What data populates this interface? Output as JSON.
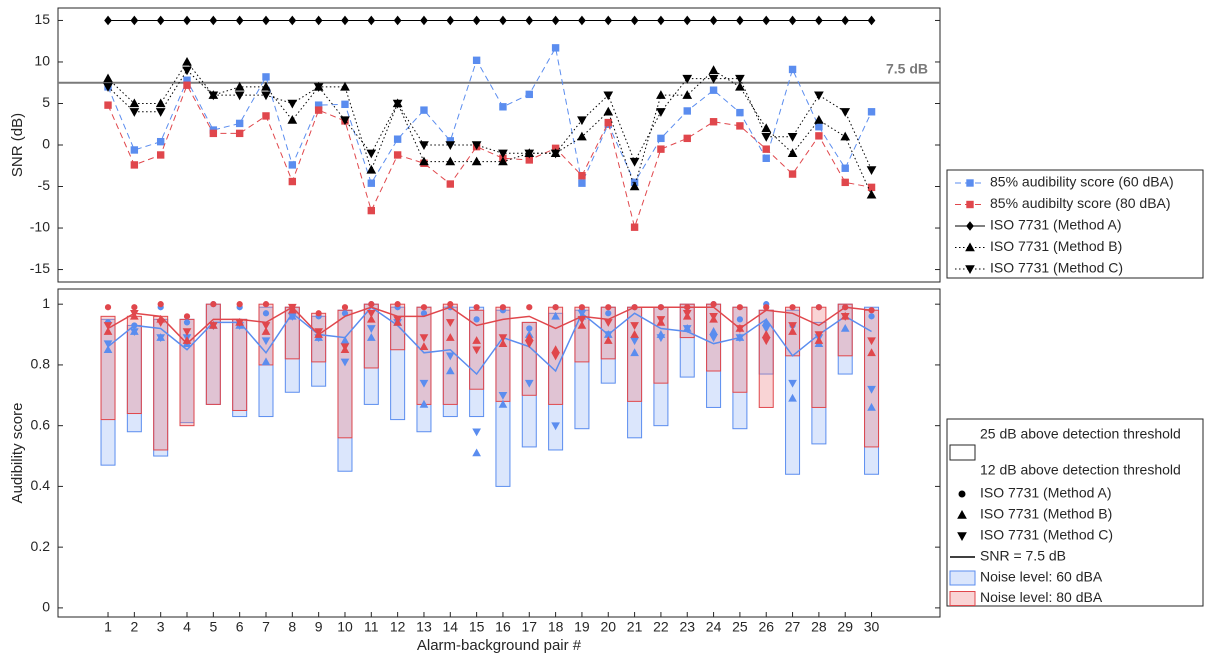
{
  "chart_data": [
    {
      "type": "line",
      "ylabel": "SNR (dB)",
      "x": [
        1,
        2,
        3,
        4,
        5,
        6,
        7,
        8,
        9,
        10,
        11,
        12,
        13,
        14,
        15,
        16,
        17,
        18,
        19,
        20,
        21,
        22,
        23,
        24,
        25,
        26,
        27,
        28,
        29,
        30
      ],
      "xlim": [
        -0.9,
        32.6
      ],
      "ylim": [
        -16.5,
        16.5
      ],
      "yticks": [
        -15,
        -10,
        -5,
        0,
        5,
        10,
        15
      ],
      "reference_line": {
        "value": 7.5,
        "label": "7.5 dB",
        "color": "#7a7a7a"
      },
      "series": [
        {
          "name": "85% audibility score (60 dBA)",
          "color": "#5b8def",
          "marker": "square",
          "dash": "dashed",
          "values": [
            7,
            -0.6,
            0.4,
            7.8,
            1.8,
            2.6,
            8.2,
            -2.4,
            4.8,
            4.9,
            -4.6,
            0.7,
            4.2,
            0.5,
            10.2,
            4.6,
            6.1,
            11.7,
            -4.6,
            2.5,
            -4.5,
            0.8,
            4.1,
            6.6,
            3.9,
            -1.6,
            9.1,
            2.2,
            -2.8,
            4
          ]
        },
        {
          "name": "85% audibilty score (80 dBA)",
          "color": "#e0474c",
          "marker": "square",
          "dash": "dashed",
          "values": [
            4.8,
            -2.4,
            -1.2,
            7.2,
            1.4,
            1.4,
            3.5,
            -4.4,
            4.2,
            2.9,
            -7.9,
            -1.2,
            -2.2,
            -4.7,
            -0.2,
            -1.6,
            -1.8,
            -0.4,
            -3.7,
            2.7,
            -9.9,
            -0.5,
            0.8,
            2.8,
            2.3,
            -0.5,
            -3.5,
            1.1,
            -4.5,
            -5.1
          ]
        },
        {
          "name": "ISO 7731 (Method A)",
          "color": "#000000",
          "marker": "diamond",
          "dash": "solid",
          "values": [
            15,
            15,
            15,
            15,
            15,
            15,
            15,
            15,
            15,
            15,
            15,
            15,
            15,
            15,
            15,
            15,
            15,
            15,
            15,
            15,
            15,
            15,
            15,
            15,
            15,
            15,
            15,
            15,
            15,
            15
          ]
        },
        {
          "name": "ISO 7731 (Method B)",
          "color": "#000000",
          "marker": "triangle-up",
          "dash": "dotted",
          "values": [
            8,
            5,
            5,
            10,
            6,
            7,
            7,
            3,
            7,
            7,
            -3,
            5,
            -2,
            -2,
            -2,
            -2,
            -1,
            -1,
            1,
            4,
            -5,
            6,
            6,
            9,
            7,
            2,
            -1,
            3,
            1,
            -6
          ]
        },
        {
          "name": "ISO 7731 (Method C)",
          "color": "#000000",
          "marker": "triangle-down",
          "dash": "dotted",
          "values": [
            7,
            4,
            4,
            9,
            6,
            6,
            6,
            5,
            7,
            3,
            -1,
            5,
            0,
            0,
            0,
            -1,
            -1,
            -1,
            3,
            6,
            -2,
            4,
            8,
            8,
            8,
            1,
            1,
            6,
            4,
            -3
          ]
        }
      ]
    },
    {
      "type": "range-bar",
      "xlabel": "Alarm-background pair #",
      "ylabel": "Audibility score",
      "x": [
        1,
        2,
        3,
        4,
        5,
        6,
        7,
        8,
        9,
        10,
        11,
        12,
        13,
        14,
        15,
        16,
        17,
        18,
        19,
        20,
        21,
        22,
        23,
        24,
        25,
        26,
        27,
        28,
        29,
        30
      ],
      "xlim": [
        -0.9,
        32.6
      ],
      "xticks": [
        1,
        2,
        3,
        4,
        5,
        6,
        7,
        8,
        9,
        10,
        11,
        12,
        13,
        14,
        15,
        16,
        17,
        18,
        19,
        20,
        21,
        22,
        23,
        24,
        25,
        26,
        27,
        28,
        29,
        30
      ],
      "ylim": [
        -0.03,
        1.05
      ],
      "yticks": [
        0,
        0.2,
        0.4,
        0.6,
        0.8,
        1
      ],
      "threshold_labels": [
        "25 dB above detection threshold",
        "12 dB above detection threshold"
      ],
      "marker_labels": [
        "ISO 7731 (Method A)",
        "ISO 7731 (Method B)",
        "ISO 7731 (Method C)"
      ],
      "marker_shapes": [
        "circle",
        "triangle-up",
        "triangle-down"
      ],
      "line_label": "SNR = 7.5 dB",
      "series": [
        {
          "name": "Noise level: 60 dBA",
          "color": "#5b8def",
          "fill": "#dbe6fc",
          "low": [
            0.47,
            0.58,
            0.5,
            0.61,
            0.67,
            0.63,
            0.63,
            0.71,
            0.73,
            0.45,
            0.67,
            0.62,
            0.58,
            0.63,
            0.63,
            0.4,
            0.53,
            0.52,
            0.59,
            0.74,
            0.56,
            0.6,
            0.76,
            0.66,
            0.59,
            0.77,
            0.44,
            0.54,
            0.77,
            0.44
          ],
          "high": [
            0.95,
            0.93,
            0.95,
            0.95,
            1.0,
            0.95,
            0.99,
            0.99,
            0.96,
            0.98,
            1.0,
            0.99,
            0.99,
            0.99,
            0.99,
            0.98,
            0.94,
            0.97,
            0.98,
            0.99,
            0.99,
            0.99,
            1.0,
            1.0,
            0.99,
            0.98,
            0.98,
            0.94,
            1.0,
            0.99
          ],
          "snr": [
            0.86,
            0.93,
            0.92,
            0.85,
            0.94,
            0.94,
            0.84,
            0.97,
            0.9,
            0.89,
            0.99,
            0.93,
            0.84,
            0.85,
            0.77,
            0.89,
            0.86,
            0.78,
            0.97,
            0.9,
            0.97,
            0.92,
            0.91,
            0.87,
            0.89,
            0.95,
            0.83,
            0.9,
            0.96,
            0.91
          ],
          "methods": [
            [
              0.94,
              0.93,
              0.99,
              0.94,
              1.0,
              0.99,
              0.97,
              0.98,
              0.96,
              0.97,
              1.0,
              0.99,
              0.97,
              0.99,
              0.95,
              0.98,
              0.92,
              0.99,
              0.98,
              0.97,
              0.99,
              0.99,
              0.99,
              1.0,
              0.95,
              1.0,
              0.93,
              0.99,
              0.99,
              0.96
            ],
            [
              0.85,
              0.91,
              0.89,
              0.87,
              0.93,
              0.93,
              0.81,
              0.96,
              0.89,
              0.88,
              0.89,
              0.94,
              0.67,
              0.78,
              0.51,
              0.67,
              0.9,
              0.96,
              0.96,
              0.9,
              0.84,
              0.9,
              0.92,
              0.91,
              0.89,
              0.94,
              0.69,
              0.87,
              0.92,
              0.66
            ],
            [
              0.87,
              0.91,
              0.89,
              0.89,
              0.93,
              0.93,
              0.88,
              0.96,
              0.89,
              0.81,
              0.92,
              0.94,
              0.74,
              0.83,
              0.58,
              0.7,
              0.74,
              0.6,
              0.97,
              0.9,
              0.88,
              0.89,
              0.92,
              0.89,
              0.89,
              0.92,
              0.74,
              0.89,
              0.96,
              0.72
            ]
          ]
        },
        {
          "name": "Noise level: 80 dBA",
          "color": "#e0474c",
          "fill": "rgba(236,120,125,0.32)",
          "low": [
            0.62,
            0.64,
            0.52,
            0.6,
            0.67,
            0.65,
            0.8,
            0.82,
            0.81,
            0.56,
            0.79,
            0.85,
            0.67,
            0.67,
            0.72,
            0.68,
            0.7,
            0.67,
            0.81,
            0.82,
            0.68,
            0.74,
            0.89,
            0.78,
            0.71,
            0.66,
            0.83,
            0.66,
            0.83,
            0.53
          ],
          "high": [
            0.96,
            0.96,
            0.96,
            0.95,
            1.0,
            0.95,
            1.0,
            0.99,
            0.97,
            0.98,
            1.0,
            1.0,
            0.99,
            1.0,
            0.98,
            0.99,
            0.94,
            0.99,
            0.99,
            0.99,
            0.99,
            0.99,
            1.0,
            1.0,
            0.99,
            0.98,
            0.99,
            0.99,
            1.0,
            0.98
          ],
          "snr": [
            0.92,
            0.97,
            0.96,
            0.87,
            0.95,
            0.95,
            0.94,
            0.99,
            0.9,
            0.96,
            0.99,
            0.96,
            0.96,
            0.99,
            0.93,
            0.95,
            0.96,
            0.92,
            0.96,
            0.95,
            0.99,
            0.99,
            0.99,
            0.99,
            0.92,
            0.98,
            0.97,
            0.93,
            0.99,
            0.98
          ],
          "methods": [
            [
              0.99,
              0.99,
              1.0,
              0.96,
              1.0,
              1.0,
              1.0,
              0.99,
              0.97,
              0.99,
              1.0,
              1.0,
              0.99,
              1.0,
              0.99,
              0.99,
              0.99,
              0.99,
              0.99,
              0.99,
              0.99,
              0.99,
              0.99,
              1.0,
              0.99,
              0.99,
              0.99,
              0.99,
              0.99,
              0.98
            ],
            [
              0.91,
              0.96,
              0.95,
              0.88,
              0.93,
              0.94,
              0.91,
              0.98,
              0.9,
              0.85,
              0.95,
              0.94,
              0.86,
              0.89,
              0.88,
              0.87,
              0.89,
              0.85,
              0.93,
              0.88,
              0.9,
              0.94,
              0.96,
              0.95,
              0.92,
              0.9,
              0.91,
              0.88,
              0.96,
              0.84
            ],
            [
              0.93,
              0.97,
              0.94,
              0.91,
              0.93,
              0.94,
              0.93,
              0.99,
              0.91,
              0.86,
              0.97,
              0.95,
              0.89,
              0.94,
              0.85,
              0.89,
              0.87,
              0.83,
              0.95,
              0.94,
              0.93,
              0.95,
              0.97,
              0.96,
              0.92,
              0.88,
              0.93,
              0.9,
              0.96,
              0.88
            ]
          ]
        }
      ]
    }
  ]
}
